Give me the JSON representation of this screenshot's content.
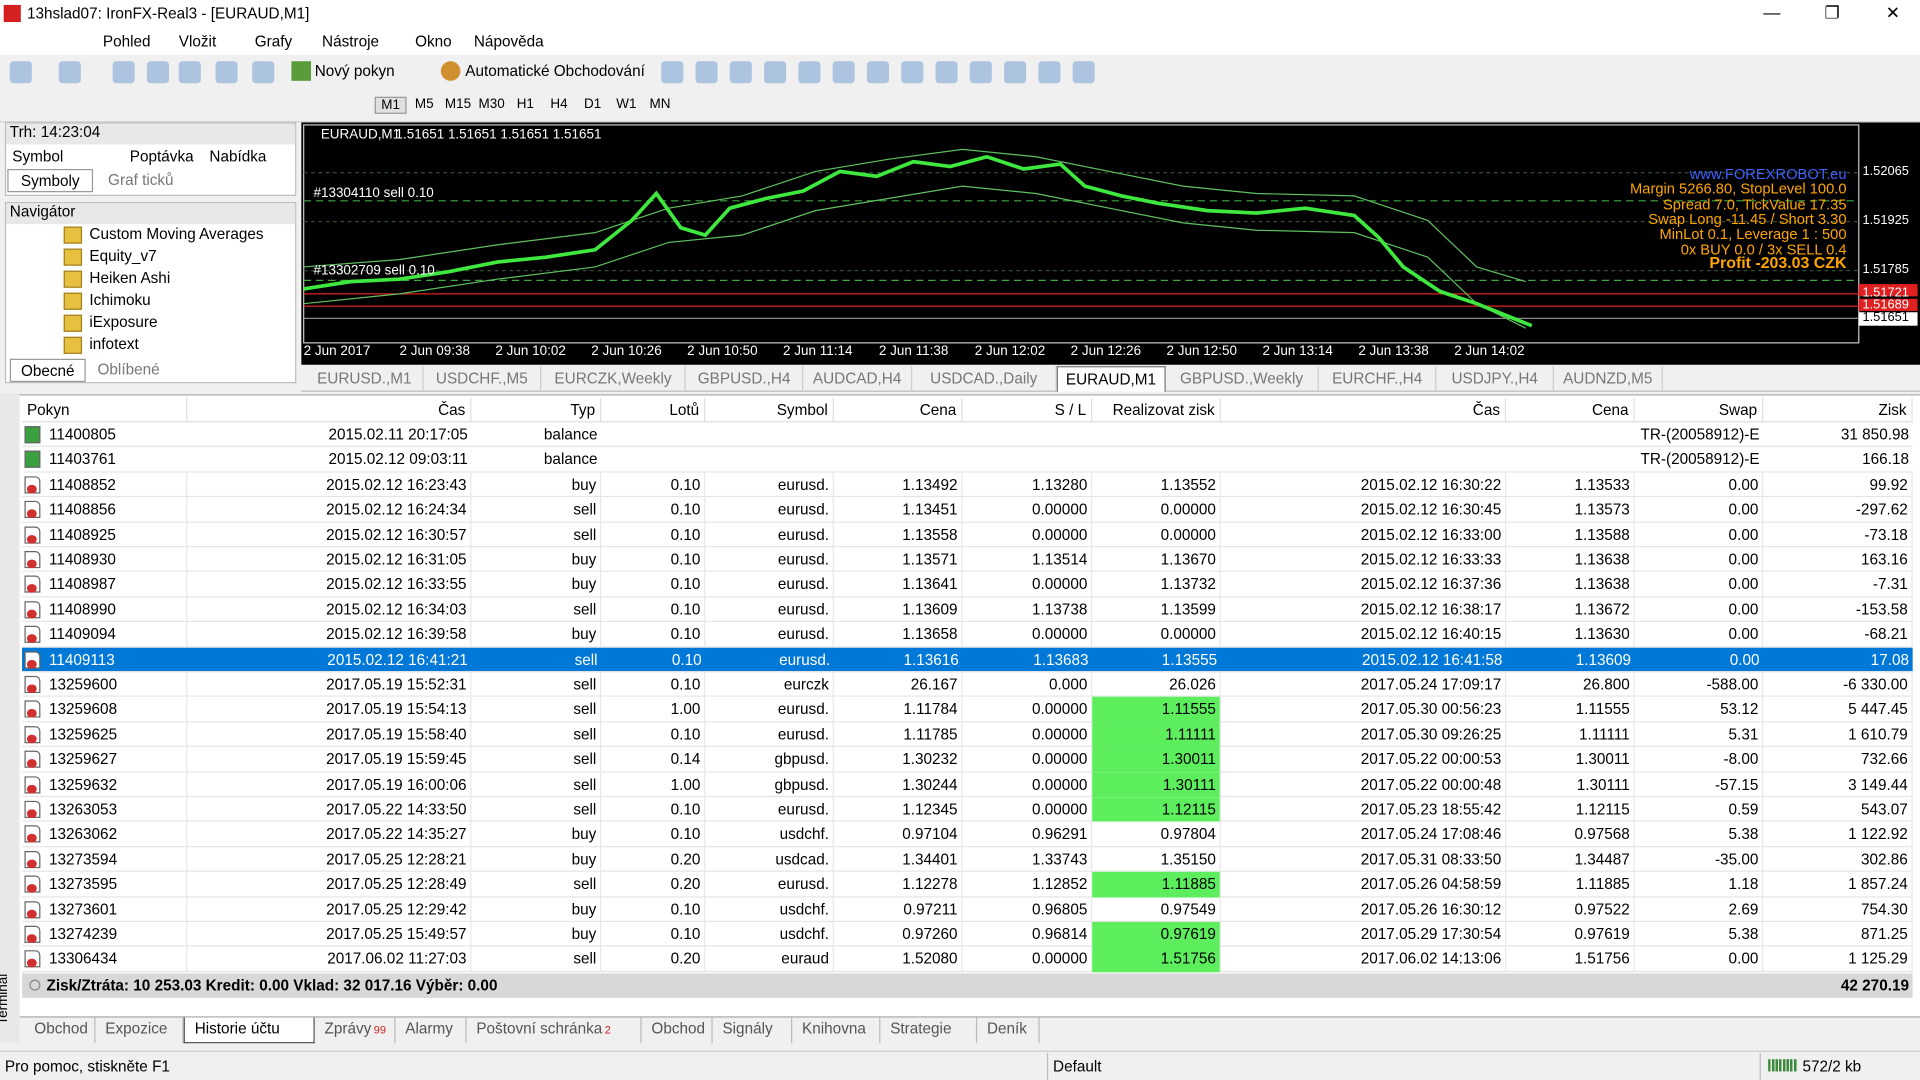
{
  "window": {
    "title": "13hslad07: IronFX-Real3 - [EURAUD,M1]"
  },
  "menu": [
    "Pohled",
    "Vložit",
    "Grafy",
    "Nástroje",
    "Okno",
    "Nápověda"
  ],
  "toolbar": {
    "new_order": "Nový pokyn",
    "auto_trading": "Automatické Obchodování",
    "timeframes": [
      "M1",
      "M5",
      "M15",
      "M30",
      "H1",
      "H4",
      "D1",
      "W1",
      "MN"
    ]
  },
  "market_watch": {
    "title": "Trh: 14:23:04",
    "columns": [
      "Symbol",
      "Poptávka",
      "Nabídka"
    ],
    "tabs": [
      "Symboly",
      "Graf ticků"
    ]
  },
  "navigator": {
    "title": "Navigátor",
    "items": [
      "Custom Moving Averages",
      "Equity_v7",
      "Heiken Ashi",
      "Ichimoku",
      "iExposure",
      "infotext"
    ],
    "tabs": [
      "Obecné",
      "Oblíbené"
    ]
  },
  "chart": {
    "symbol": "EURAUD,M1",
    "quote": "1.51651 1.51651 1.51651 1.51651",
    "order_labels": [
      "#13304110 sell 0.10",
      "#13302709 sell 0.10"
    ],
    "info": [
      "www.FOREXROBOT.eu",
      "Margin 5266.80, StopLevel 100.0",
      "Spread 7.0, TickValue 17.35",
      "Swap Long -11.45 / Short 3.30",
      "MinLot 0.1, Leverage 1 : 500",
      "0x BUY 0.0 / 3x SELL 0.4",
      "Profit -203.03 CZK"
    ],
    "price_labels": [
      "1.52065",
      "1.51925",
      "1.51785",
      "1.51721",
      "1.51689",
      "1.51651"
    ],
    "time_labels": [
      "2 Jun 2017",
      "2 Jun 09:38",
      "2 Jun 10:02",
      "2 Jun 10:26",
      "2 Jun 10:50",
      "2 Jun 11:14",
      "2 Jun 11:38",
      "2 Jun 12:02",
      "2 Jun 12:26",
      "2 Jun 12:50",
      "2 Jun 13:14",
      "2 Jun 13:38",
      "2 Jun 14:02"
    ]
  },
  "chart_tabs": [
    "EURUSD.,M1",
    "USDCHF.,M5",
    "EURCZK,Weekly",
    "GBPUSD.,H4",
    "AUDCAD,H4",
    "USDCAD.,Daily",
    "EURAUD,M1",
    "GBPUSD.,Weekly",
    "EURCHF.,H4",
    "USDJPY.,H4",
    "AUDNZD,M5"
  ],
  "terminal": {
    "side_label": "Terminál",
    "columns": [
      "Pokyn",
      "Čas",
      "Typ",
      "Lotů",
      "Symbol",
      "Cena",
      "S / L",
      "Realizovat zisk",
      "Čas",
      "Cena",
      "Swap",
      "Zisk"
    ],
    "rows": [
      {
        "cells": [
          "11400805",
          "2015.02.11 20:17:05",
          "balance",
          "TR-(20058912)-E",
          "31 850.98"
        ]
      },
      {
        "cells": [
          "11403761",
          "2015.02.12 09:03:11",
          "balance",
          "TR-(20058912)-E",
          "166.18"
        ]
      },
      {
        "cells": [
          "11408852",
          "2015.02.12 16:23:43",
          "buy",
          "0.10",
          "eurusd.",
          "1.13492",
          "1.13280",
          "1.13552",
          "2015.02.12 16:30:22",
          "1.13533",
          "0.00",
          "99.92"
        ]
      },
      {
        "cells": [
          "11408856",
          "2015.02.12 16:24:34",
          "sell",
          "0.10",
          "eurusd.",
          "1.13451",
          "0.00000",
          "0.00000",
          "2015.02.12 16:30:45",
          "1.13573",
          "0.00",
          "-297.62"
        ]
      },
      {
        "cells": [
          "11408925",
          "2015.02.12 16:30:57",
          "sell",
          "0.10",
          "eurusd.",
          "1.13558",
          "0.00000",
          "0.00000",
          "2015.02.12 16:33:00",
          "1.13588",
          "0.00",
          "-73.18"
        ]
      },
      {
        "cells": [
          "11408930",
          "2015.02.12 16:31:05",
          "buy",
          "0.10",
          "eurusd.",
          "1.13571",
          "1.13514",
          "1.13670",
          "2015.02.12 16:33:33",
          "1.13638",
          "0.00",
          "163.16"
        ]
      },
      {
        "cells": [
          "11408987",
          "2015.02.12 16:33:55",
          "buy",
          "0.10",
          "eurusd.",
          "1.13641",
          "0.00000",
          "1.13732",
          "2015.02.12 16:37:36",
          "1.13638",
          "0.00",
          "-7.31"
        ]
      },
      {
        "cells": [
          "11408990",
          "2015.02.12 16:34:03",
          "sell",
          "0.10",
          "eurusd.",
          "1.13609",
          "1.13738",
          "1.13599",
          "2015.02.12 16:38:17",
          "1.13672",
          "0.00",
          "-153.58"
        ]
      },
      {
        "cells": [
          "11409094",
          "2015.02.12 16:39:58",
          "buy",
          "0.10",
          "eurusd.",
          "1.13658",
          "0.00000",
          "0.00000",
          "2015.02.12 16:40:15",
          "1.13630",
          "0.00",
          "-68.21"
        ]
      },
      {
        "cells": [
          "11409113",
          "2015.02.12 16:41:21",
          "sell",
          "0.10",
          "eurusd.",
          "1.13616",
          "1.13683",
          "1.13555",
          "2015.02.12 16:41:58",
          "1.13609",
          "0.00",
          "17.08"
        ],
        "selected": true
      },
      {
        "cells": [
          "13259600",
          "2017.05.19 15:52:31",
          "sell",
          "0.10",
          "eurczk",
          "26.167",
          "0.000",
          "26.026",
          "2017.05.24 17:09:17",
          "26.800",
          "-588.00",
          "-6 330.00"
        ]
      },
      {
        "cells": [
          "13259608",
          "2017.05.19 15:54:13",
          "sell",
          "1.00",
          "eurusd.",
          "1.11784",
          "0.00000",
          "1.11555",
          "2017.05.30 00:56:23",
          "1.11555",
          "53.12",
          "5 447.45"
        ],
        "highlight": true
      },
      {
        "cells": [
          "13259625",
          "2017.05.19 15:58:40",
          "sell",
          "0.10",
          "eurusd.",
          "1.11785",
          "0.00000",
          "1.11111",
          "2017.05.30 09:26:25",
          "1.11111",
          "5.31",
          "1 610.79"
        ],
        "highlight": true
      },
      {
        "cells": [
          "13259627",
          "2017.05.19 15:59:45",
          "sell",
          "0.14",
          "gbpusd.",
          "1.30232",
          "0.00000",
          "1.30011",
          "2017.05.22 00:00:53",
          "1.30011",
          "-8.00",
          "732.66"
        ],
        "highlight": true
      },
      {
        "cells": [
          "13259632",
          "2017.05.19 16:00:06",
          "sell",
          "1.00",
          "gbpusd.",
          "1.30244",
          "0.00000",
          "1.30111",
          "2017.05.22 00:00:48",
          "1.30111",
          "-57.15",
          "3 149.44"
        ],
        "highlight": true
      },
      {
        "cells": [
          "13263053",
          "2017.05.22 14:33:50",
          "sell",
          "0.10",
          "eurusd.",
          "1.12345",
          "0.00000",
          "1.12115",
          "2017.05.23 18:55:42",
          "1.12115",
          "0.59",
          "543.07"
        ],
        "highlight": true
      },
      {
        "cells": [
          "13263062",
          "2017.05.22 14:35:27",
          "buy",
          "0.10",
          "usdchf.",
          "0.97104",
          "0.96291",
          "0.97804",
          "2017.05.24 17:08:46",
          "0.97568",
          "5.38",
          "1 122.92"
        ]
      },
      {
        "cells": [
          "13273594",
          "2017.05.25 12:28:21",
          "buy",
          "0.20",
          "usdcad.",
          "1.34401",
          "1.33743",
          "1.35150",
          "2017.05.31 08:33:50",
          "1.34487",
          "-35.00",
          "302.86"
        ]
      },
      {
        "cells": [
          "13273595",
          "2017.05.25 12:28:49",
          "sell",
          "0.20",
          "eurusd.",
          "1.12278",
          "1.12852",
          "1.11885",
          "2017.05.26 04:58:59",
          "1.11885",
          "1.18",
          "1 857.24"
        ],
        "highlight": true
      },
      {
        "cells": [
          "13273601",
          "2017.05.25 12:29:42",
          "buy",
          "0.10",
          "usdchf.",
          "0.97211",
          "0.96805",
          "0.97549",
          "2017.05.26 16:30:12",
          "0.97522",
          "2.69",
          "754.30"
        ]
      },
      {
        "cells": [
          "13274239",
          "2017.05.25 15:49:57",
          "buy",
          "0.10",
          "usdchf.",
          "0.97260",
          "0.96814",
          "0.97619",
          "2017.05.29 17:30:54",
          "0.97619",
          "5.38",
          "871.25"
        ],
        "highlight": true
      },
      {
        "cells": [
          "13306434",
          "2017.06.02 11:27:03",
          "sell",
          "0.20",
          "euraud",
          "1.52080",
          "0.00000",
          "1.51756",
          "2017.06.02 14:13:06",
          "1.51756",
          "0.00",
          "1 125.29"
        ],
        "highlight": true
      }
    ],
    "summary": {
      "text": "Zisk/Ztráta: 10 253.03  Kredit: 0.00  Vklad: 32 017.16  Výběr: 0.00",
      "total": "42 270.19"
    },
    "tabs": [
      {
        "label": "Obchod"
      },
      {
        "label": "Expozice"
      },
      {
        "label": "Historie účtu",
        "active": true
      },
      {
        "label": "Zprávy",
        "badge": "99"
      },
      {
        "label": "Alarmy"
      },
      {
        "label": "Poštovní schránka",
        "badge": "2"
      },
      {
        "label": "Obchod"
      },
      {
        "label": "Signály"
      },
      {
        "label": "Knihovna"
      },
      {
        "label": "Strategie"
      },
      {
        "label": "Deník"
      }
    ]
  },
  "status": {
    "help": "Pro pomoc, stiskněte F1",
    "profile": "Default",
    "traffic": "572/2 kb"
  }
}
